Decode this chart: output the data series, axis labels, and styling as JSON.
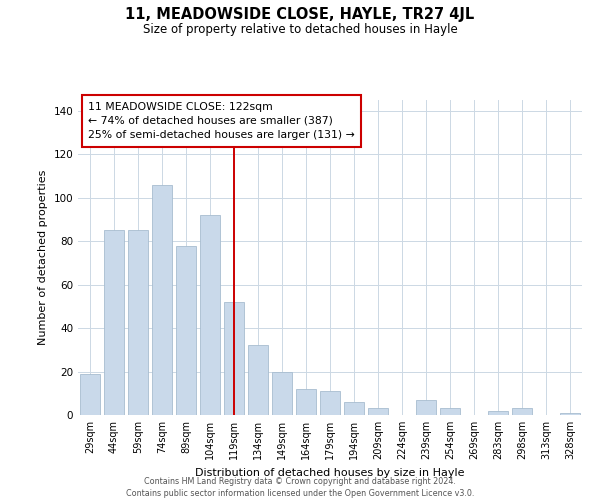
{
  "title": "11, MEADOWSIDE CLOSE, HAYLE, TR27 4JL",
  "subtitle": "Size of property relative to detached houses in Hayle",
  "xlabel": "Distribution of detached houses by size in Hayle",
  "ylabel": "Number of detached properties",
  "bar_labels": [
    "29sqm",
    "44sqm",
    "59sqm",
    "74sqm",
    "89sqm",
    "104sqm",
    "119sqm",
    "134sqm",
    "149sqm",
    "164sqm",
    "179sqm",
    "194sqm",
    "209sqm",
    "224sqm",
    "239sqm",
    "254sqm",
    "269sqm",
    "283sqm",
    "298sqm",
    "313sqm",
    "328sqm"
  ],
  "bar_values": [
    19,
    85,
    85,
    106,
    78,
    92,
    52,
    32,
    20,
    12,
    11,
    6,
    3,
    0,
    7,
    3,
    0,
    2,
    3,
    0,
    1
  ],
  "bar_color": "#c9d9ea",
  "bar_edge_color": "#a8bdd0",
  "highlight_index": 6,
  "highlight_line_color": "#cc0000",
  "annotation_line1": "11 MEADOWSIDE CLOSE: 122sqm",
  "annotation_line2": "← 74% of detached houses are smaller (387)",
  "annotation_line3": "25% of semi-detached houses are larger (131) →",
  "annotation_box_color": "#ffffff",
  "annotation_box_edge_color": "#cc0000",
  "ylim": [
    0,
    145
  ],
  "yticks": [
    0,
    20,
    40,
    60,
    80,
    100,
    120,
    140
  ],
  "footer_line1": "Contains HM Land Registry data © Crown copyright and database right 2024.",
  "footer_line2": "Contains public sector information licensed under the Open Government Licence v3.0.",
  "bg_color": "#ffffff",
  "grid_color": "#ccd8e4"
}
